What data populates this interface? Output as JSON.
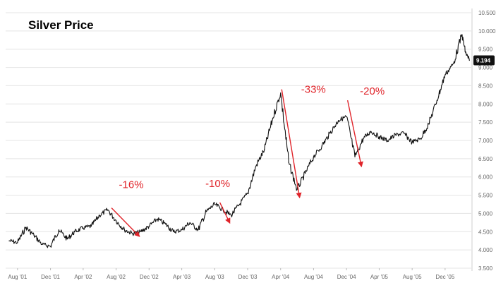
{
  "chart_data": {
    "type": "line",
    "title": "Silver Price",
    "xlabel": "",
    "ylabel": "",
    "ylim": [
      3.5,
      10.5
    ],
    "grid": true,
    "x_ticks": [
      "Aug '01",
      "Dec '01",
      "Apr '02",
      "Aug '02",
      "Dec '02",
      "Apr '03",
      "Aug '03",
      "Dec '03",
      "Apr '04",
      "Aug '04",
      "Dec '04",
      "Apr '05",
      "Aug '05",
      "Dec '05"
    ],
    "y_ticks": [
      {
        "value": 10.5,
        "label": "10.500"
      },
      {
        "value": 10.0,
        "label": "10.000"
      },
      {
        "value": 9.5,
        "label": "9.500"
      },
      {
        "value": 9.0,
        "label": "9.000"
      },
      {
        "value": 8.5,
        "label": "8.500"
      },
      {
        "value": 8.0,
        "label": "8.000"
      },
      {
        "value": 7.5,
        "label": "7.500"
      },
      {
        "value": 7.0,
        "label": "7.000"
      },
      {
        "value": 6.5,
        "label": "6.500"
      },
      {
        "value": 6.0,
        "label": "6.000"
      },
      {
        "value": 5.5,
        "label": "5.500"
      },
      {
        "value": 5.0,
        "label": "5.000"
      },
      {
        "value": 4.5,
        "label": "4.500"
      },
      {
        "value": 4.0,
        "label": "4.000"
      },
      {
        "value": 3.5,
        "label": "3.500"
      }
    ],
    "last_value_label": "9.194",
    "series": [
      {
        "color": "#111111",
        "points": [
          {
            "x": "2001-07-01",
            "y": 4.25
          },
          {
            "x": "2001-08-01",
            "y": 4.2
          },
          {
            "x": "2001-09-01",
            "y": 4.62
          },
          {
            "x": "2001-10-01",
            "y": 4.4
          },
          {
            "x": "2001-11-01",
            "y": 4.15
          },
          {
            "x": "2001-12-01",
            "y": 4.1
          },
          {
            "x": "2002-01-01",
            "y": 4.55
          },
          {
            "x": "2002-02-01",
            "y": 4.3
          },
          {
            "x": "2002-03-01",
            "y": 4.5
          },
          {
            "x": "2002-04-01",
            "y": 4.6
          },
          {
            "x": "2002-05-01",
            "y": 4.65
          },
          {
            "x": "2002-06-01",
            "y": 4.95
          },
          {
            "x": "2002-07-01",
            "y": 5.1
          },
          {
            "x": "2002-08-01",
            "y": 4.8
          },
          {
            "x": "2002-09-01",
            "y": 4.55
          },
          {
            "x": "2002-10-01",
            "y": 4.45
          },
          {
            "x": "2002-11-01",
            "y": 4.5
          },
          {
            "x": "2002-12-01",
            "y": 4.65
          },
          {
            "x": "2003-01-01",
            "y": 4.85
          },
          {
            "x": "2003-02-01",
            "y": 4.7
          },
          {
            "x": "2003-03-01",
            "y": 4.5
          },
          {
            "x": "2003-04-01",
            "y": 4.55
          },
          {
            "x": "2003-05-01",
            "y": 4.75
          },
          {
            "x": "2003-06-01",
            "y": 4.55
          },
          {
            "x": "2003-07-01",
            "y": 5.05
          },
          {
            "x": "2003-08-01",
            "y": 5.25
          },
          {
            "x": "2003-09-01",
            "y": 5.1
          },
          {
            "x": "2003-10-01",
            "y": 4.95
          },
          {
            "x": "2003-11-01",
            "y": 5.25
          },
          {
            "x": "2003-12-01",
            "y": 5.55
          },
          {
            "x": "2004-01-01",
            "y": 6.3
          },
          {
            "x": "2004-02-01",
            "y": 6.75
          },
          {
            "x": "2004-03-01",
            "y": 7.55
          },
          {
            "x": "2004-04-01",
            "y": 8.3
          },
          {
            "x": "2004-05-01",
            "y": 6.4
          },
          {
            "x": "2004-06-01",
            "y": 5.65
          },
          {
            "x": "2004-07-01",
            "y": 6.1
          },
          {
            "x": "2004-08-01",
            "y": 6.55
          },
          {
            "x": "2004-09-01",
            "y": 6.85
          },
          {
            "x": "2004-10-01",
            "y": 7.2
          },
          {
            "x": "2004-11-01",
            "y": 7.55
          },
          {
            "x": "2004-12-01",
            "y": 7.65
          },
          {
            "x": "2005-01-01",
            "y": 6.55
          },
          {
            "x": "2005-02-01",
            "y": 7.05
          },
          {
            "x": "2005-03-01",
            "y": 7.25
          },
          {
            "x": "2005-04-01",
            "y": 7.1
          },
          {
            "x": "2005-05-01",
            "y": 7.0
          },
          {
            "x": "2005-06-01",
            "y": 7.15
          },
          {
            "x": "2005-07-01",
            "y": 7.2
          },
          {
            "x": "2005-08-01",
            "y": 6.95
          },
          {
            "x": "2005-09-01",
            "y": 7.05
          },
          {
            "x": "2005-10-01",
            "y": 7.45
          },
          {
            "x": "2005-11-01",
            "y": 8.1
          },
          {
            "x": "2005-12-01",
            "y": 8.8
          },
          {
            "x": "2006-01-01",
            "y": 9.1
          },
          {
            "x": "2006-02-01",
            "y": 9.9
          },
          {
            "x": "2006-02-15",
            "y": 9.4
          },
          {
            "x": "2006-03-01",
            "y": 9.194
          }
        ]
      }
    ],
    "annotations": [
      {
        "label": "-16%",
        "from": {
          "x": "2002-07-15",
          "y": 5.15
        },
        "to": {
          "x": "2002-10-25",
          "y": 4.38
        }
      },
      {
        "label": "-10%",
        "from": {
          "x": "2003-08-20",
          "y": 5.3
        },
        "to": {
          "x": "2003-09-25",
          "y": 4.75
        }
      },
      {
        "label": "-33%",
        "from": {
          "x": "2004-04-05",
          "y": 8.4
        },
        "to": {
          "x": "2004-06-10",
          "y": 5.45
        }
      },
      {
        "label": "-20%",
        "from": {
          "x": "2004-12-05",
          "y": 8.1
        },
        "to": {
          "x": "2005-01-25",
          "y": 6.3
        }
      }
    ]
  }
}
